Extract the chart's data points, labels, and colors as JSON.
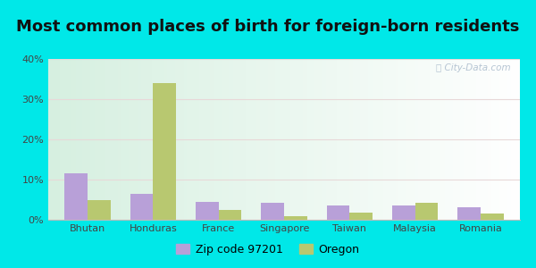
{
  "title": "Most common places of birth for foreign-born residents",
  "categories": [
    "Bhutan",
    "Honduras",
    "France",
    "Singapore",
    "Taiwan",
    "Malaysia",
    "Romania"
  ],
  "zip_values": [
    11.5,
    6.5,
    4.5,
    4.2,
    3.5,
    3.5,
    3.2
  ],
  "oregon_values": [
    5.0,
    34.0,
    2.5,
    0.8,
    1.8,
    4.2,
    1.5
  ],
  "zip_color": "#b8a0d8",
  "oregon_color": "#b8c870",
  "background_outer": "#00e8e8",
  "background_inner_tl": "#e8f5e0",
  "background_inner_br": "#f5faee",
  "ylim": [
    0,
    40
  ],
  "yticks": [
    0,
    10,
    20,
    30,
    40
  ],
  "ytick_labels": [
    "0%",
    "10%",
    "20%",
    "30%",
    "40%"
  ],
  "zip_label": "Zip code 97201",
  "oregon_label": "Oregon",
  "title_fontsize": 13,
  "legend_fontsize": 9,
  "tick_fontsize": 8,
  "bar_width": 0.35,
  "watermark": "ⓘ City-Data.com"
}
